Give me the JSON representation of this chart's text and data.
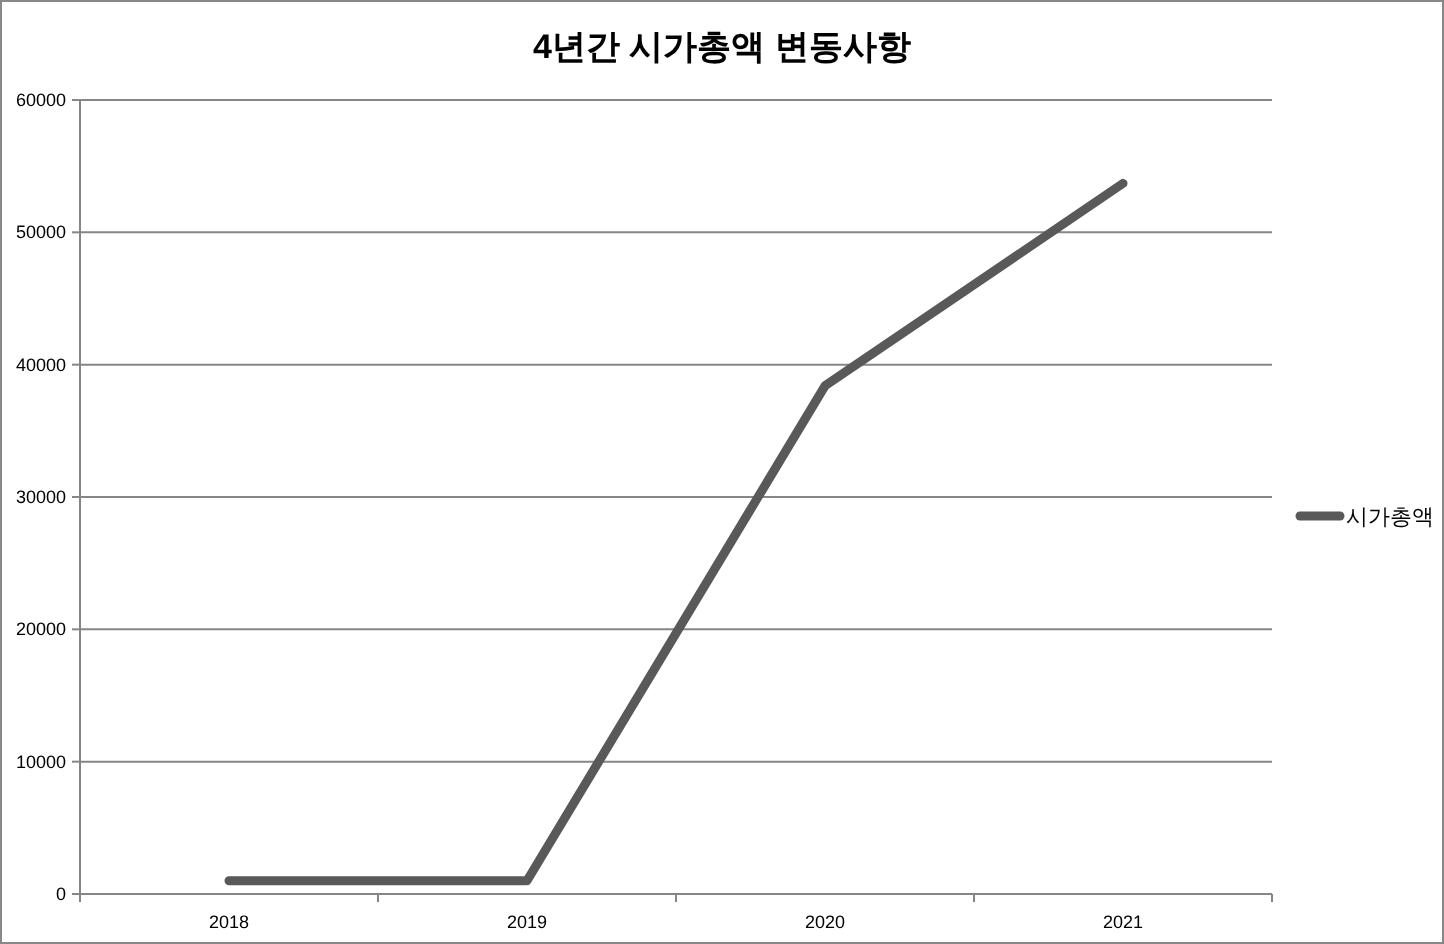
{
  "chart_data": {
    "type": "line",
    "title": "4년간 시가총액 변동사항",
    "categories": [
      "2018",
      "2019",
      "2020",
      "2021"
    ],
    "series": [
      {
        "name": "시가총액",
        "color": "#595959",
        "values": [
          1000,
          1000,
          38400,
          53700
        ]
      }
    ],
    "ylim": [
      0,
      60000
    ],
    "yticks": [
      0,
      10000,
      20000,
      30000,
      40000,
      50000,
      60000
    ],
    "grid": "y",
    "legend": "right"
  }
}
